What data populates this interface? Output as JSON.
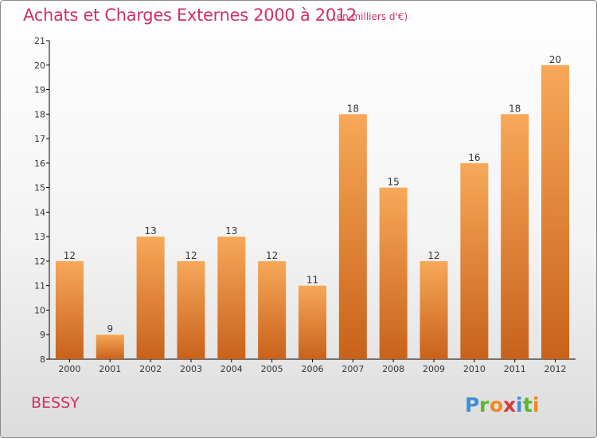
{
  "header": {
    "title": "Achats et Charges Externes 2000 à 2012",
    "unit": "(en milliers d'€)"
  },
  "footer": {
    "commune": "BESSY",
    "brand": "Proxiti"
  },
  "colors": {
    "title": "#d0306a",
    "bar_light": "#f7a858",
    "bar_dark": "#c8621a",
    "axis": "#000000"
  },
  "chart_data": {
    "type": "bar",
    "title": "Achats et Charges Externes 2000 à 2012",
    "subtitle": "(en milliers d'€)",
    "categories": [
      "2000",
      "2001",
      "2002",
      "2003",
      "2004",
      "2005",
      "2006",
      "2007",
      "2008",
      "2009",
      "2010",
      "2011",
      "2012"
    ],
    "values": [
      12,
      9,
      13,
      12,
      13,
      12,
      11,
      18,
      15,
      12,
      16,
      18,
      20
    ],
    "ylim": [
      8,
      21
    ],
    "yticks": [
      8,
      9,
      10,
      11,
      12,
      13,
      14,
      15,
      16,
      17,
      18,
      19,
      20,
      21
    ],
    "grid": false,
    "xlabel": "",
    "ylabel": ""
  }
}
